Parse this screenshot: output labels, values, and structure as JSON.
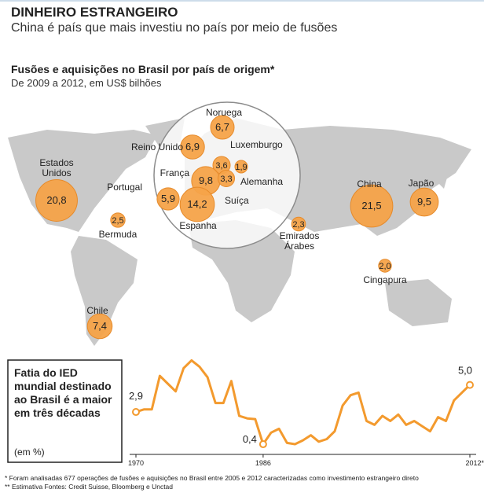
{
  "header": {
    "title": "DINHEIRO ESTRANGEIRO",
    "subtitle": "China é país que mais investiu no país por meio de fusões"
  },
  "chart_data": [
    {
      "type": "bubble",
      "title": "Fusões e aquisições no Brasil por país de origem*",
      "subtitle": "De 2009 a 2012, em US$ bilhões",
      "color": "#f5a349",
      "categories": [
        "Estados Unidos",
        "Bermuda",
        "Chile",
        "Noruega",
        "Reino Unido",
        "Luxemburgo",
        "Alemanha",
        "França",
        "Suíça",
        "Portugal",
        "Espanha",
        "Emirados Árabes",
        "China",
        "Japão",
        "Cingapura"
      ],
      "values": [
        20.8,
        2.5,
        7.4,
        6.7,
        6.9,
        3.6,
        1.9,
        9.8,
        3.3,
        5.9,
        14.2,
        2.3,
        21.5,
        9.5,
        2.0
      ],
      "value_labels": [
        "20,8",
        "2,5",
        "7,4",
        "6,7",
        "6,9",
        "3,6",
        "1,9",
        "9,8",
        "3,3",
        "5,9",
        "14,2",
        "2,3",
        "21,5",
        "9,5",
        "2,0"
      ]
    },
    {
      "type": "line",
      "title": "Fatia do IED mundial destinado ao Brasil é a maior em três décadas",
      "unit": "(em %)",
      "color": "#f39a2e",
      "x": [
        1970,
        1971,
        1972,
        1973,
        1974,
        1975,
        1976,
        1977,
        1978,
        1979,
        1980,
        1981,
        1982,
        1983,
        1984,
        1985,
        1986,
        1987,
        1988,
        1989,
        1990,
        1991,
        1992,
        1993,
        1994,
        1995,
        1996,
        1997,
        1998,
        1999,
        2000,
        2001,
        2002,
        2003,
        2004,
        2005,
        2006,
        2007,
        2008,
        2009,
        2010,
        2011,
        2012
      ],
      "values": [
        2.9,
        3.1,
        3.1,
        5.7,
        5.1,
        4.5,
        6.3,
        6.9,
        6.4,
        5.6,
        3.6,
        3.6,
        5.3,
        2.6,
        2.4,
        2.35,
        0.4,
        1.3,
        1.6,
        0.5,
        0.4,
        0.7,
        1.1,
        0.6,
        0.8,
        1.4,
        3.4,
        4.2,
        4.4,
        2.2,
        1.9,
        2.6,
        2.2,
        2.7,
        1.9,
        2.2,
        1.8,
        1.4,
        2.5,
        2.2,
        3.8,
        4.4,
        5.0
      ],
      "value_labels": [
        "2,9",
        null,
        null,
        null,
        null,
        null,
        null,
        null,
        null,
        null,
        null,
        null,
        null,
        null,
        null,
        null,
        "0,4",
        null,
        null,
        null,
        null,
        null,
        null,
        null,
        null,
        null,
        null,
        null,
        null,
        null,
        null,
        null,
        null,
        null,
        null,
        null,
        null,
        null,
        null,
        null,
        null,
        null,
        "5,0"
      ],
      "xlim": [
        1970,
        2012
      ],
      "xticks": [
        1970,
        1986,
        {
          "value": 2012,
          "label": "2012**"
        }
      ],
      "ylim": [
        0,
        7.5
      ]
    }
  ],
  "footnotes": [
    "* Foram analisadas 677 operações de fusões e aquisições no Brasil entre 2005 e 2012 caracterizadas como investimento estrangeiro direto",
    "** Estimativa Fontes: Credit Suisse, Bloomberg e Unctad"
  ]
}
